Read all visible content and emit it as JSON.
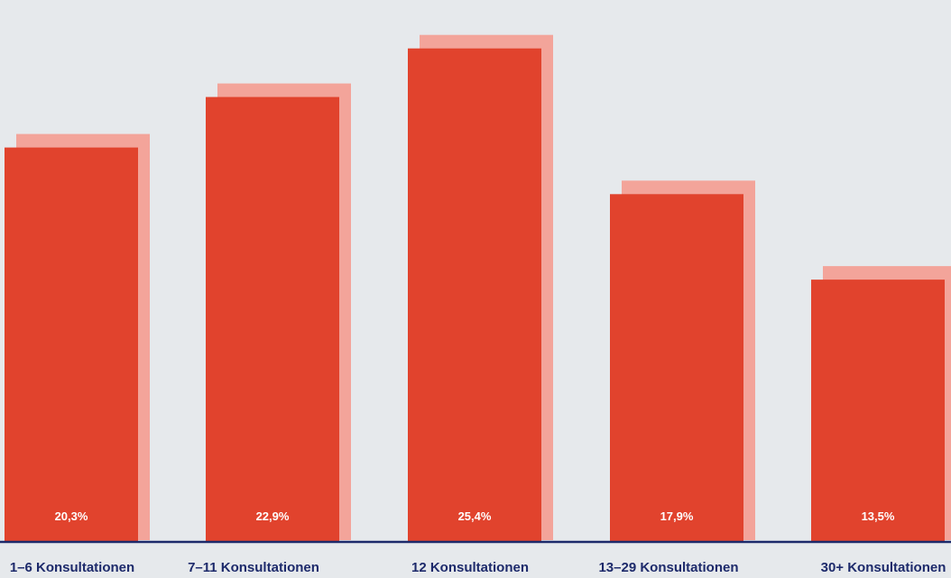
{
  "colors": {
    "bar": "#e1432d",
    "bar_shadow": "#f3a49a",
    "baseline": "#1d2a6b",
    "category_text": "#1d2a6b",
    "value_text": "#ffffff",
    "background": "#eef0f2"
  },
  "chart_data": {
    "type": "bar",
    "title": "",
    "xlabel": "",
    "ylabel": "",
    "categories": [
      "1–6 Konsultationen",
      "7–11 Konsultationen",
      "12 Konsultationen",
      "13–29 Konsultationen",
      "30+ Konsultationen"
    ],
    "values": [
      20.3,
      22.9,
      25.4,
      17.9,
      13.5
    ],
    "value_labels": [
      "20,3%",
      "22,9%",
      "25,4%",
      "17,9%",
      "13,5%"
    ],
    "unit": "%",
    "ylim": [
      0,
      26.5
    ],
    "grid": false,
    "legend": "none"
  }
}
